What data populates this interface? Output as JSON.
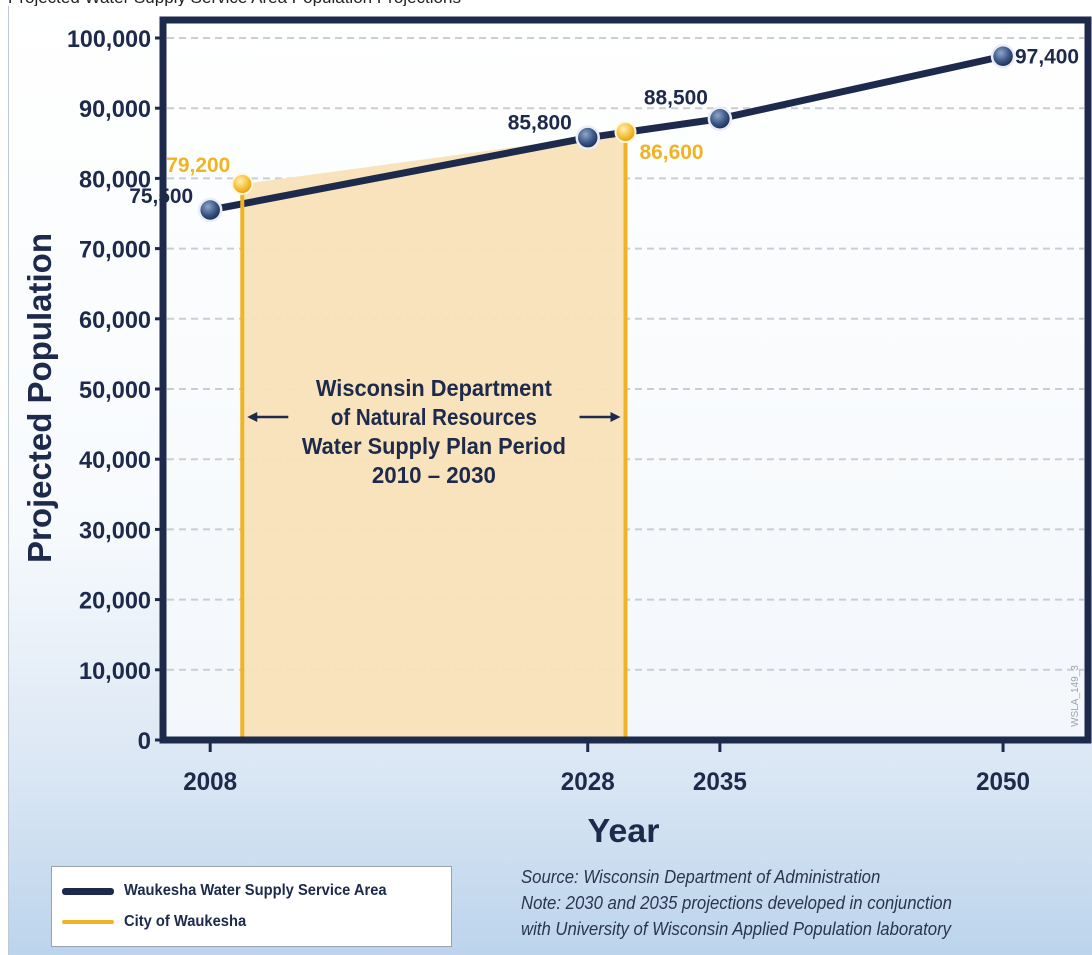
{
  "header_cut_text": "Projected Water Supply Service Area Population Projections",
  "chart_data": {
    "type": "line",
    "title": "",
    "xlabel": "Year",
    "ylabel": "Projected Population",
    "ylim": [
      0,
      100000
    ],
    "yticks": [
      0,
      10000,
      20000,
      30000,
      40000,
      50000,
      60000,
      70000,
      80000,
      90000,
      100000
    ],
    "ytick_labels": [
      "0",
      "10,000",
      "20,000",
      "30,000",
      "40,000",
      "50,000",
      "60,000",
      "70,000",
      "80,000",
      "90,000",
      "100,000"
    ],
    "xlim": [
      2005.5,
      2054.5
    ],
    "xticks": [
      2008,
      2028,
      2035,
      2050
    ],
    "xtick_labels": [
      "2008",
      "2028",
      "2035",
      "2050"
    ],
    "grid": "horizontal dashed",
    "series": [
      {
        "name": "Waukesha Water Supply Service Area",
        "color": "#1d2a4b",
        "x": [
          2008,
          2028,
          2035,
          2050
        ],
        "y": [
          75500,
          85800,
          88500,
          97400
        ],
        "labels": [
          "75,500",
          "85,800",
          "88,500",
          "97,400"
        ]
      },
      {
        "name": "City of Waukesha",
        "color": "#f0b323",
        "x": [
          2009.7,
          2030
        ],
        "y": [
          79200,
          86600
        ],
        "labels": [
          "79,200",
          "86,600"
        ]
      }
    ],
    "shaded_region": {
      "x": [
        2009.7,
        2030
      ],
      "fill": "#f8e2b8",
      "text": [
        "Wisconsin Department",
        "of Natural Resources",
        "Water Supply Plan Period",
        "2010 – 2030"
      ]
    },
    "watermark": "WSLA_149_3"
  },
  "legend": {
    "placement": "bottom-left",
    "items": [
      {
        "label": "Waukesha Water Supply Service Area",
        "color": "#1d2a4b"
      },
      {
        "label": "City of Waukesha",
        "color": "#f0b323"
      }
    ]
  },
  "notes": {
    "source": "Source: Wisconsin Department of Administration",
    "note_line1": "Note: 2030 and 2035 projections developed in conjunction",
    "note_line2": "with University of Wisconsin Applied Population laboratory"
  },
  "colors": {
    "navy": "#1d2a4b",
    "gold": "#f0b323",
    "shade": "#f8e2b8",
    "grid": "#c9ced6"
  }
}
